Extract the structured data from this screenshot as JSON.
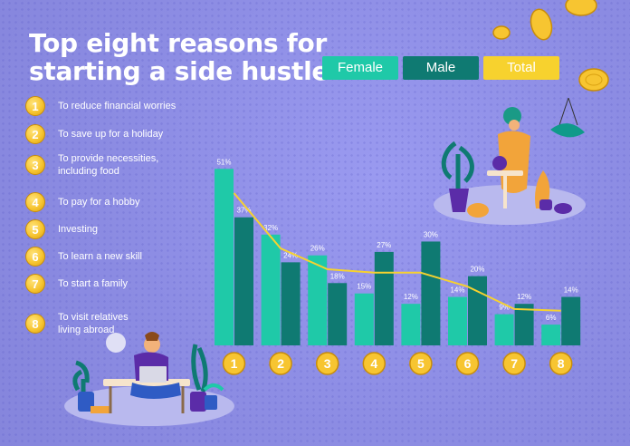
{
  "title": [
    "Top eight reasons for",
    "starting a side hustle"
  ],
  "legend": [
    {
      "label": "Female",
      "color": "#1fc9a8",
      "text_color": "#ffffff"
    },
    {
      "label": "Male",
      "color": "#0f7a72",
      "text_color": "#ffffff"
    },
    {
      "label": "Total",
      "color": "#f7d22e",
      "text_color": "#ffffff"
    }
  ],
  "reasons": [
    {
      "number": "1",
      "lines": [
        "To reduce financial worries"
      ]
    },
    {
      "number": "2",
      "lines": [
        "To save up for a holiday"
      ]
    },
    {
      "number": "3",
      "lines": [
        "To provide necessities,",
        "including food"
      ]
    },
    {
      "number": "4",
      "lines": [
        "To pay for a hobby"
      ]
    },
    {
      "number": "5",
      "lines": [
        "Investing"
      ]
    },
    {
      "number": "6",
      "lines": [
        "To learn a new skill"
      ]
    },
    {
      "number": "7",
      "lines": [
        "To start a family"
      ]
    },
    {
      "number": "8",
      "lines": [
        "To visit relatives",
        "living abroad"
      ]
    }
  ],
  "chart_data": {
    "type": "bar",
    "categories": [
      "1",
      "2",
      "3",
      "4",
      "5",
      "6",
      "7",
      "8"
    ],
    "series": [
      {
        "name": "Female",
        "values": [
          51,
          32,
          26,
          15,
          12,
          14,
          9,
          6
        ],
        "labels": [
          "51%",
          "32%",
          "26%",
          "15%",
          "12%",
          "14%",
          "9%",
          "6%"
        ],
        "color": "#1fc9a8"
      },
      {
        "name": "Male",
        "values": [
          37,
          24,
          18,
          27,
          30,
          20,
          12,
          14
        ],
        "labels": [
          "37%",
          "24%",
          "18%",
          "27%",
          "30%",
          "20%",
          "12%",
          "14%"
        ],
        "color": "#0f7a72"
      },
      {
        "name": "Total",
        "type": "line",
        "values": [
          44,
          28,
          22,
          21,
          21,
          17,
          10.5,
          10
        ],
        "color": "#f7d22e"
      }
    ],
    "ylim": [
      0,
      55
    ],
    "grid": false,
    "legend_position": "top-right"
  }
}
